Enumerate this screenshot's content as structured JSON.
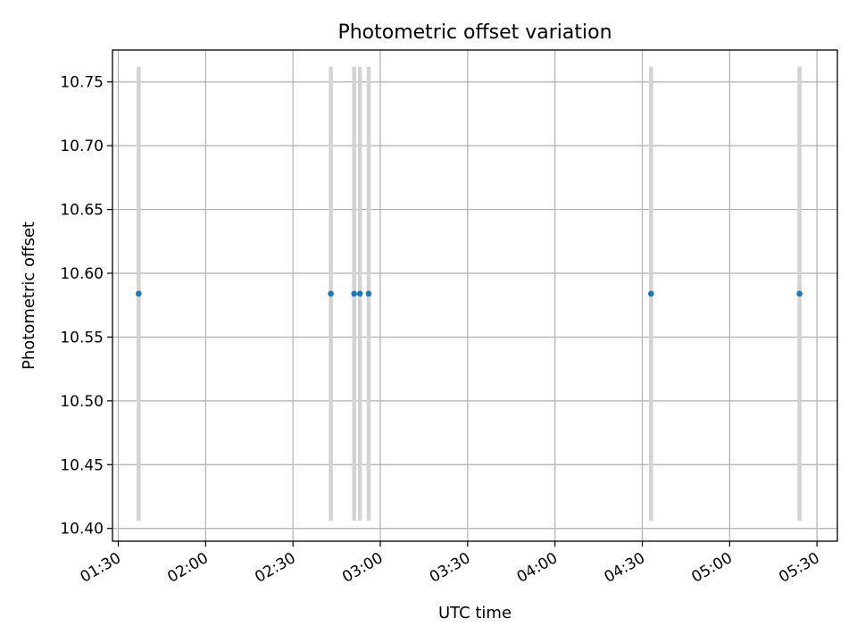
{
  "chart_data": {
    "type": "scatter",
    "title": "Photometric offset variation",
    "xlabel": "UTC time",
    "ylabel": "Photometric offset",
    "xlim": [
      "01:28",
      "05:37"
    ],
    "ylim": [
      10.39,
      10.775
    ],
    "grid": true,
    "x_ticks": [
      "01:30",
      "02:00",
      "02:30",
      "03:00",
      "03:30",
      "04:00",
      "04:30",
      "05:00",
      "05:30"
    ],
    "y_ticks": [
      "10.40",
      "10.45",
      "10.50",
      "10.55",
      "10.60",
      "10.65",
      "10.70",
      "10.75"
    ],
    "points": [
      {
        "x": "01:37",
        "y": 10.584,
        "error": 0.178
      },
      {
        "x": "02:43",
        "y": 10.584,
        "error": 0.178
      },
      {
        "x": "02:51",
        "y": 10.584,
        "error": 0.178
      },
      {
        "x": "02:53",
        "y": 10.584,
        "error": 0.178
      },
      {
        "x": "02:56",
        "y": 10.584,
        "error": 0.178
      },
      {
        "x": "04:33",
        "y": 10.584,
        "error": 0.178
      },
      {
        "x": "05:24",
        "y": 10.584,
        "error": 0.178
      }
    ],
    "colors": {
      "points": "#1f77b4",
      "error_bars": "#d3d3d3",
      "grid": "#b0b0b0"
    }
  }
}
